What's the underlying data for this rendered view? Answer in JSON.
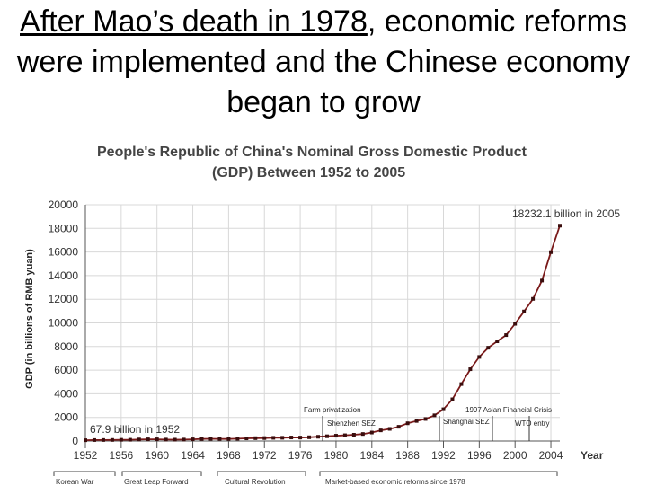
{
  "slide": {
    "title_underlined": "After Mao’s death in 1978",
    "title_rest": ", economic reforms were implemented and the Chinese economy began to grow"
  },
  "chart_data": {
    "type": "line",
    "title": "People's Republic of China's Nominal Gross Domestic Product (GDP) Between 1952 to 2005",
    "title_line1": "People's Republic of China's Nominal Gross Domestic Product",
    "title_line2": "(GDP) Between 1952 to 2005",
    "ylabel": "GDP (in billions of RMB yuan)",
    "xlabel": "Year",
    "ylim": [
      0,
      20000
    ],
    "xlim": [
      1952,
      2005
    ],
    "y_ticks": [
      0,
      2000,
      4000,
      6000,
      8000,
      10000,
      12000,
      14000,
      16000,
      18000,
      20000
    ],
    "x_ticks": [
      1952,
      1956,
      1960,
      1964,
      1968,
      1972,
      1976,
      1980,
      1984,
      1988,
      1992,
      1996,
      2000,
      2004
    ],
    "grid": true,
    "color": "#7a1a1a",
    "x": [
      1952,
      1953,
      1954,
      1955,
      1956,
      1957,
      1958,
      1959,
      1960,
      1961,
      1962,
      1963,
      1964,
      1965,
      1966,
      1967,
      1968,
      1969,
      1970,
      1971,
      1972,
      1973,
      1974,
      1975,
      1976,
      1977,
      1978,
      1979,
      1980,
      1981,
      1982,
      1983,
      1984,
      1985,
      1986,
      1987,
      1988,
      1989,
      1990,
      1991,
      1992,
      1993,
      1994,
      1995,
      1996,
      1997,
      1998,
      1999,
      2000,
      2001,
      2002,
      2003,
      2004,
      2005
    ],
    "values": [
      67.9,
      82,
      86,
      91,
      103,
      107,
      131,
      144,
      146,
      122,
      115,
      123,
      145,
      172,
      187,
      177,
      172,
      194,
      225,
      243,
      252,
      272,
      276,
      300,
      294,
      320,
      362,
      404,
      452,
      489,
      532,
      596,
      721,
      902,
      1028,
      1206,
      1504,
      1700,
      1867,
      2178,
      2692,
      3533,
      4820,
      6079,
      7118,
      7897,
      8440,
      8968,
      9921,
      10966,
      12033,
      13582,
      15988,
      18232.1
    ],
    "annotations": {
      "end_label": "18232.1 billion in 2005",
      "start_label": "67.9 billion in 1952",
      "farm": "Farm privatization",
      "shenzhen": "Shenzhen SEZ",
      "shanghai": "Shanghai SEZ",
      "asian_crisis": "1997 Asian Financial Crisis",
      "wto": "WTO entry"
    },
    "eras": [
      {
        "label": "Korean War"
      },
      {
        "label": "Great Leap Forward"
      },
      {
        "label": "Cultural Revolution"
      },
      {
        "label": "Market-based economic reforms since 1978"
      }
    ]
  }
}
